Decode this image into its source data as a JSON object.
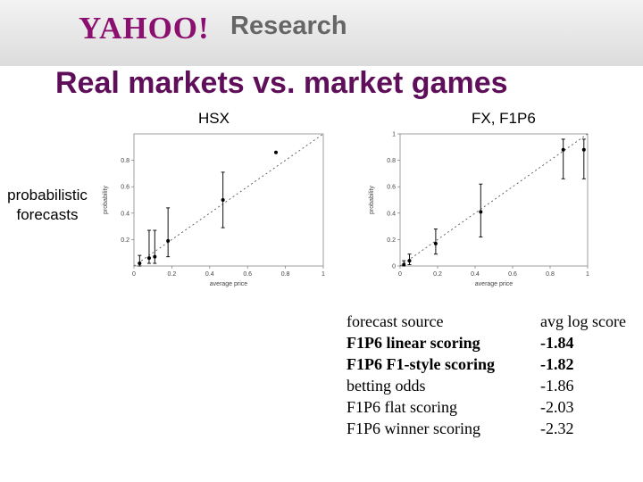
{
  "header": {
    "logo": "YAHOO!",
    "logo_suffix": "Research"
  },
  "title": "Real markets vs. market games",
  "columns": {
    "left": "HSX",
    "right": "FX, F1P6"
  },
  "row_label": {
    "line1": "probabilistic",
    "line2": "forecasts"
  },
  "chart_data": [
    {
      "type": "scatter",
      "title": "HSX",
      "xlabel": "average price",
      "ylabel": "probability",
      "xlim": [
        0,
        1
      ],
      "ylim": [
        0,
        1
      ],
      "x_ticks": [
        "0",
        "0.2",
        "0.4",
        "0.6",
        "0.8",
        "1"
      ],
      "y_ticks": [
        "0.2",
        "0.4",
        "0.6",
        "0.8"
      ],
      "diagonal": true,
      "points": [
        {
          "x": 0.03,
          "y": 0.02,
          "err_low": 0.0,
          "err_high": 0.08
        },
        {
          "x": 0.08,
          "y": 0.06,
          "err_low": 0.02,
          "err_high": 0.27
        },
        {
          "x": 0.11,
          "y": 0.07,
          "err_low": 0.02,
          "err_high": 0.27
        },
        {
          "x": 0.18,
          "y": 0.19,
          "err_low": 0.07,
          "err_high": 0.44
        },
        {
          "x": 0.47,
          "y": 0.5,
          "err_low": 0.29,
          "err_high": 0.71
        },
        {
          "x": 0.75,
          "y": 0.86,
          "err_low": 0.86,
          "err_high": 0.86
        }
      ]
    },
    {
      "type": "scatter",
      "title": "FX, F1P6",
      "xlabel": "average price",
      "ylabel": "probability",
      "xlim": [
        0,
        1
      ],
      "ylim": [
        0,
        1
      ],
      "x_ticks": [
        "0",
        "0.2",
        "0.4",
        "0.6",
        "0.8",
        "1"
      ],
      "y_ticks": [
        "0",
        "0.2",
        "0.4",
        "0.6",
        "0.8",
        "1"
      ],
      "diagonal": true,
      "points": [
        {
          "x": 0.02,
          "y": 0.01,
          "err_low": 0.0,
          "err_high": 0.04
        },
        {
          "x": 0.05,
          "y": 0.04,
          "err_low": 0.01,
          "err_high": 0.09
        },
        {
          "x": 0.19,
          "y": 0.17,
          "err_low": 0.09,
          "err_high": 0.28
        },
        {
          "x": 0.43,
          "y": 0.41,
          "err_low": 0.22,
          "err_high": 0.62
        },
        {
          "x": 0.87,
          "y": 0.88,
          "err_low": 0.66,
          "err_high": 0.96
        },
        {
          "x": 0.98,
          "y": 0.88,
          "err_low": 0.66,
          "err_high": 0.96
        }
      ]
    }
  ],
  "table": {
    "headers": [
      "forecast source",
      "avg log score"
    ],
    "rows": [
      {
        "source": "F1P6 linear scoring",
        "score": "-1.84",
        "bold": true
      },
      {
        "source": "F1P6 F1-style scoring",
        "score": "-1.82",
        "bold": true
      },
      {
        "source": "betting odds",
        "score": "-1.86",
        "bold": false
      },
      {
        "source": "F1P6 flat scoring",
        "score": "-2.03",
        "bold": false
      },
      {
        "source": "F1P6 winner scoring",
        "score": "-2.32",
        "bold": false
      }
    ]
  }
}
